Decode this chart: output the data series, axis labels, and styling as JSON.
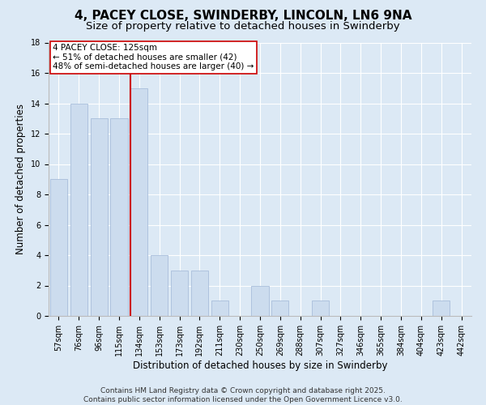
{
  "title": "4, PACEY CLOSE, SWINDERBY, LINCOLN, LN6 9NA",
  "subtitle": "Size of property relative to detached houses in Swinderby",
  "xlabel": "Distribution of detached houses by size in Swinderby",
  "ylabel": "Number of detached properties",
  "bar_labels": [
    "57sqm",
    "76sqm",
    "96sqm",
    "115sqm",
    "134sqm",
    "153sqm",
    "173sqm",
    "192sqm",
    "211sqm",
    "230sqm",
    "250sqm",
    "269sqm",
    "288sqm",
    "307sqm",
    "327sqm",
    "346sqm",
    "365sqm",
    "384sqm",
    "404sqm",
    "423sqm",
    "442sqm"
  ],
  "bar_values": [
    9,
    14,
    13,
    13,
    15,
    4,
    3,
    3,
    1,
    0,
    2,
    1,
    0,
    1,
    0,
    0,
    0,
    0,
    0,
    1,
    0
  ],
  "bar_color": "#ccdcee",
  "bar_edge_color": "#a8bedb",
  "vline_color": "#cc0000",
  "annotation_text": "4 PACEY CLOSE: 125sqm\n← 51% of detached houses are smaller (42)\n48% of semi-detached houses are larger (40) →",
  "annotation_box_facecolor": "#ffffff",
  "annotation_box_edgecolor": "#cc0000",
  "ylim": [
    0,
    18
  ],
  "yticks": [
    0,
    2,
    4,
    6,
    8,
    10,
    12,
    14,
    16,
    18
  ],
  "background_color": "#dce9f5",
  "grid_color": "#ffffff",
  "footer_text": "Contains HM Land Registry data © Crown copyright and database right 2025.\nContains public sector information licensed under the Open Government Licence v3.0.",
  "title_fontsize": 11,
  "subtitle_fontsize": 9.5,
  "axis_label_fontsize": 8.5,
  "tick_fontsize": 7,
  "annotation_fontsize": 7.5,
  "footer_fontsize": 6.5
}
